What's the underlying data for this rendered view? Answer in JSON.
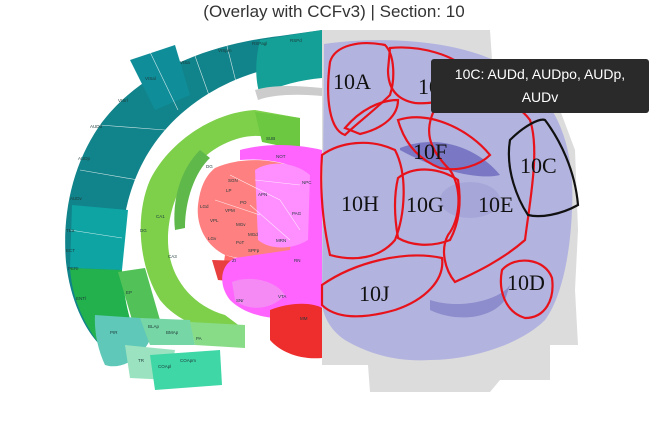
{
  "title": "(Overlay with CCFv3) | Section: 10",
  "tooltip": {
    "line1": "10C: AUDd, AUDpo, AUDp,",
    "line2": "AUDv"
  },
  "colors": {
    "region_outline": "#e8121b",
    "highlight_outline": "#111111",
    "tooltip_bg": "#2a2a2a"
  },
  "regions": [
    {
      "id": "10A",
      "label": "10A"
    },
    {
      "id": "10B",
      "label": "10B"
    },
    {
      "id": "10C",
      "label": "10C",
      "highlighted": true
    },
    {
      "id": "10D",
      "label": "10D"
    },
    {
      "id": "10E",
      "label": "10E"
    },
    {
      "id": "10F",
      "label": "10F"
    },
    {
      "id": "10G",
      "label": "10G"
    },
    {
      "id": "10H",
      "label": "10H"
    },
    {
      "id": "10J",
      "label": "10J"
    }
  ],
  "atlas_labels": {
    "cortex": [
      "RSPd",
      "VISpm",
      "RSPagl",
      "VISa",
      "VISal",
      "VISrl",
      "AUDd",
      "AUDp",
      "AUDv",
      "TEa",
      "ECT",
      "PERI",
      "ENTl"
    ],
    "hippocampus": [
      "DG",
      "CA1",
      "CA3",
      "DG",
      "SUB"
    ],
    "thalamus": [
      "LP",
      "PO",
      "VPM",
      "VPL",
      "LGd",
      "LGv",
      "MGv",
      "MGd",
      "SGN",
      "PoT",
      "SPFp",
      "ZI"
    ],
    "midbrain": [
      "APN",
      "MRN",
      "PAG",
      "NOT",
      "NPC",
      "RN",
      "SNr",
      "VTA",
      "MM"
    ],
    "amygdala": [
      "PIR",
      "BLAp",
      "BMAp",
      "PA",
      "COApl",
      "COApm",
      "TR",
      "EP"
    ]
  }
}
